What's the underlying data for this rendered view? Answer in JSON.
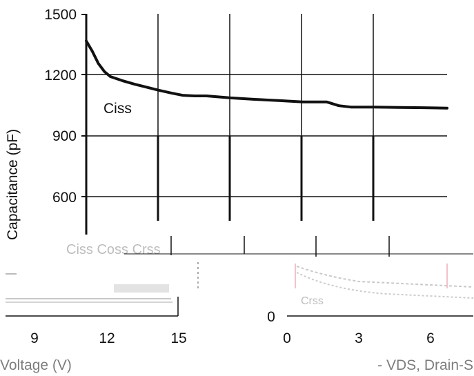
{
  "chart_data": [
    {
      "type": "line",
      "title": "",
      "ylabel": "Capacitance (pF)",
      "xlabel": "",
      "xlim": [
        0,
        30
      ],
      "ylim": [
        0,
        1500
      ],
      "y_ticks": [
        1500,
        1200,
        900,
        600
      ],
      "grid": true,
      "series": [
        {
          "name": "Ciss",
          "x": [
            0,
            0.5,
            1,
            1.5,
            2,
            3,
            4,
            5,
            6,
            7,
            8,
            9,
            10,
            12,
            14,
            16,
            18,
            20,
            21,
            22,
            24,
            26,
            28,
            30
          ],
          "y": [
            1370,
            1320,
            1260,
            1220,
            1195,
            1175,
            1158,
            1143,
            1128,
            1115,
            1103,
            1100,
            1100,
            1090,
            1083,
            1077,
            1070,
            1070,
            1052,
            1045,
            1045,
            1043,
            1042,
            1040
          ]
        }
      ]
    },
    {
      "type": "line",
      "title": "",
      "xlabel": "Voltage (V)",
      "x_ticks": [
        "9",
        "12",
        "15"
      ]
    },
    {
      "type": "line",
      "title": "",
      "xlabel": "- VDS, Drain-S",
      "x_ticks": [
        "0",
        "3",
        "6"
      ],
      "y_ticks": [
        "0"
      ],
      "series": [
        {
          "name": "Crss"
        }
      ]
    }
  ],
  "labels": {
    "ciss": "Ciss",
    "crss": "Crss",
    "ghost_cluster": "Ciss Coss Crss"
  }
}
